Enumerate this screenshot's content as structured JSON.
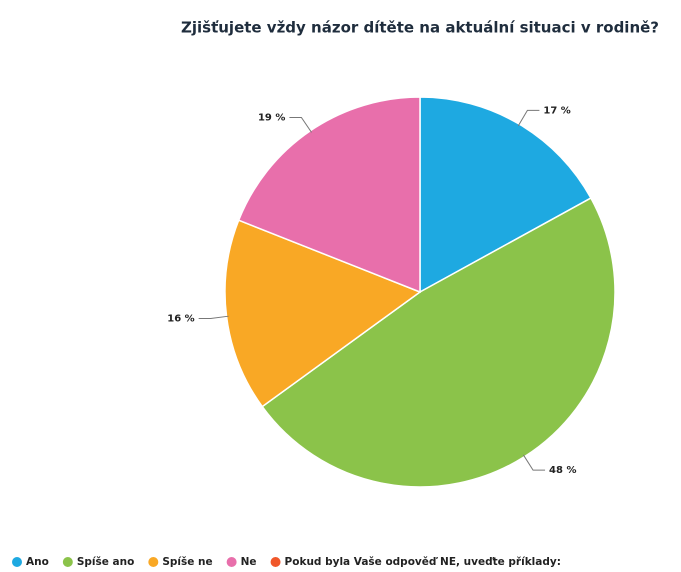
{
  "chart_data": {
    "type": "pie",
    "title": "Zjišťujete vždy názor dítěte na aktuální situaci v rodině?",
    "categories": [
      "Ano",
      "Spíše ano",
      "Spíše ne",
      "Ne",
      "Pokud byla Vaše odpověď NE, uveďte příklady:"
    ],
    "values": [
      17,
      48,
      16,
      19,
      0
    ],
    "value_labels": [
      "17 %",
      "48 %",
      "16 %",
      "19 %",
      null
    ],
    "colors": [
      "#1ea9e1",
      "#8bc34a",
      "#f9a825",
      "#e86fab",
      "#f0572a"
    ],
    "legend": "bottom"
  }
}
